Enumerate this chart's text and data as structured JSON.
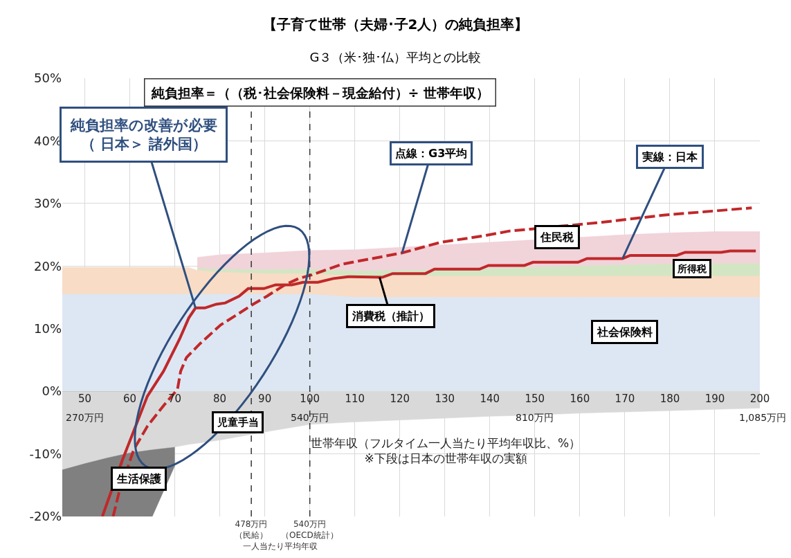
{
  "chart_data": {
    "type": "area",
    "title": "【子育て世帯（夫婦･子2人）の純負担率】",
    "subtitle": "G３（米･独･仏）平均との比較",
    "xlabel": "世帯年収（フルタイム一人当たり平均年収比、%）\n※下段は日本の世帯年収の実額",
    "x": [
      45,
      50,
      55,
      60,
      65,
      70,
      73,
      75,
      80,
      90,
      100,
      110,
      120,
      130,
      140,
      150,
      160,
      170,
      180,
      190,
      200
    ],
    "series": [
      {
        "name": "住民税",
        "color": "#f1d3da",
        "values": [
          null,
          null,
          null,
          null,
          null,
          null,
          null,
          21.4,
          21.8,
          22.1,
          22.5,
          22.6,
          23.0,
          23.4,
          23.8,
          24.2,
          24.6,
          25.0,
          25.3,
          25.5,
          25.5
        ]
      },
      {
        "name": "所得税",
        "color": "#d3e6c4",
        "values": [
          null,
          null,
          null,
          null,
          null,
          null,
          null,
          19.6,
          19.5,
          19.4,
          19.5,
          19.2,
          19.3,
          19.4,
          19.6,
          19.8,
          20.0,
          20.2,
          20.3,
          20.4,
          20.4
        ]
      },
      {
        "name": "消費税（推計）",
        "color": "#f8dcc6",
        "values": [
          19.8,
          19.8,
          19.8,
          19.8,
          19.8,
          19.8,
          19.8,
          19.3,
          19.0,
          18.8,
          18.8,
          18.4,
          18.4,
          18.4,
          18.4,
          18.4,
          18.4,
          18.4,
          18.4,
          18.4,
          18.4
        ]
      },
      {
        "name": "社会保険料",
        "color": "#dde7f3",
        "values": [
          15.5,
          15.5,
          15.5,
          15.5,
          15.5,
          15.5,
          15.5,
          15.5,
          15.5,
          15.5,
          15.5,
          15,
          15,
          15,
          15,
          15,
          15,
          15,
          15,
          15,
          15
        ]
      },
      {
        "name": "生活保護",
        "color": "#808080",
        "values": [
          -20,
          -20,
          -20,
          -20,
          -20,
          -11.9,
          null,
          null,
          null,
          null,
          null,
          null,
          null,
          null,
          null,
          null,
          null,
          null,
          null,
          null,
          null
        ]
      },
      {
        "name": "児童手当",
        "color": "#d9d9d9",
        "values": [
          -12.5,
          -11.5,
          -10.6,
          -9.8,
          -9.3,
          -8.9,
          -8.5,
          -8.3,
          -7.8,
          -6.5,
          -5.3,
          -4.9,
          -4.6,
          -4.3,
          -4.0,
          -3.8,
          -3.5,
          -3.3,
          -3.1,
          -2.9,
          -2.7
        ]
      },
      {
        "name": "点線：G3平均",
        "type": "line",
        "line_style": "dashed",
        "color": "#c0282a",
        "x": [
          56.3,
          57.6,
          60.9,
          63.9,
          67.5,
          70.6,
          71.3,
          72.6,
          75.6,
          80.2,
          83.3,
          87.4,
          90.5,
          94.5,
          97.5,
          100.5,
          103.6,
          107.2,
          120.5,
          129.1,
          138.4,
          144.4,
          149,
          165,
          178.2,
          198.2
        ],
        "values": [
          -20,
          -16.2,
          -9.3,
          -5.6,
          -2.3,
          0.3,
          3.2,
          5.4,
          7.6,
          10.6,
          12.0,
          13.9,
          15.2,
          17.0,
          18.0,
          18.6,
          19.4,
          20.3,
          22.1,
          23.8,
          24.8,
          25.6,
          25.9,
          27.0,
          28.1,
          29.3
        ]
      },
      {
        "name": "実線：日本",
        "type": "line",
        "line_style": "solid",
        "color": "#c0282a",
        "x": [
          53.9,
          58.3,
          60.9,
          63.9,
          67.5,
          71.1,
          73.1,
          74.6,
          76.7,
          79.2,
          81.2,
          84.3,
          86.3,
          89.8,
          92.4,
          96,
          98.5,
          101.8,
          105.2,
          108.5,
          116.1,
          118.4,
          125.7,
          127.7,
          137.7,
          139.7,
          147.7,
          149.6,
          159.6,
          161.6,
          169.5,
          171.2,
          181.5,
          183.4,
          191.4,
          193.4,
          199.1
        ],
        "values": [
          -20,
          -11.1,
          -6.3,
          -0.8,
          3.2,
          8.4,
          11.7,
          13.3,
          13.3,
          13.9,
          14.1,
          15.2,
          16.4,
          16.4,
          17.0,
          17.0,
          17.4,
          17.4,
          18.0,
          18.3,
          18.2,
          18.8,
          18.8,
          19.5,
          19.5,
          20.1,
          20.1,
          20.6,
          20.6,
          21.2,
          21.2,
          21.7,
          21.7,
          22.2,
          22.2,
          22.4,
          22.4
        ]
      }
    ],
    "xlim": [
      45,
      200
    ],
    "xticks": [
      50,
      60,
      70,
      80,
      90,
      100,
      110,
      120,
      130,
      140,
      150,
      160,
      170,
      180,
      190,
      200
    ],
    "ylim": [
      -20,
      50
    ],
    "yticks": [
      {
        "value": -20,
        "label": "-20%"
      },
      {
        "value": -10,
        "label": "-10%"
      },
      {
        "value": 0,
        "label": "0%"
      },
      {
        "value": 10,
        "label": "10%"
      },
      {
        "value": 20,
        "label": "20%"
      },
      {
        "value": 30,
        "label": "30%"
      },
      {
        "value": 40,
        "label": "40%"
      },
      {
        "value": 50,
        "label": "50%"
      }
    ],
    "ref_lines": [
      {
        "axis": "x",
        "value": 87,
        "label": "478万円（民給）",
        "color": "#333333",
        "line_style": "dashed"
      },
      {
        "axis": "x",
        "value": 100,
        "label": "540万円（OECD統計）",
        "color": "#333333",
        "line_style": "dashed"
      }
    ],
    "annotations": [
      "純負担率＝（（税･社会保険料－現金給付）÷ 世帯年収）",
      {
        "text": "純負担率の改善が必要（ 日本＞ 諸外国）",
        "x": 74.6,
        "y": 13.3
      },
      "一人当たり平均年収",
      "270万円",
      "540万円",
      "810万円",
      "1,085万円"
    ],
    "grid": true,
    "legend": false
  }
}
